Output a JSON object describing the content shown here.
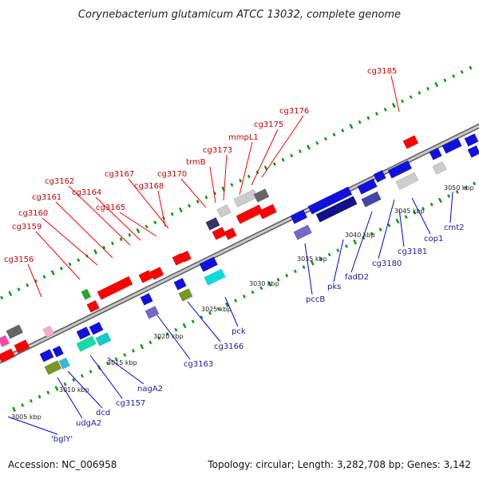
{
  "title": "Corynebacterium glutamicum ATCC 13032, complete genome",
  "accession": "Accession: NC_006958",
  "topology": "Topology: circular; Length: 3,282,708 bp; Genes: 3,142",
  "colors": {
    "forward": "#ff0000",
    "reverse": "#0000ee",
    "backbone": "#999999",
    "tick": "#119911",
    "forward_label": "#cc0000",
    "reverse_label": "#1a1aa8"
  },
  "scale_labels": [
    "3005 kbp",
    "3010 kbp",
    "3015 kbp",
    "3020 kbp",
    "3025 kbp",
    "3030 kbp",
    "3035 kbp",
    "3040 kbp",
    "3045 kbp",
    "3050 kbp"
  ],
  "forward_genes": [
    "cg3156",
    "cg3159",
    "cg3160",
    "cg3161",
    "cg3162",
    "cg3164",
    "cg3165",
    "cg3167",
    "cg3168",
    "cg3170",
    "trmB",
    "cg3173",
    "mmpL1",
    "cg3175",
    "cg3176",
    "cg3185"
  ],
  "reverse_genes": [
    "'bglY'",
    "udgA2",
    "dcd",
    "cg3157",
    "nagA2",
    "cg3163",
    "cg3166",
    "pck",
    "pccB",
    "pks",
    "fadD2",
    "cg3180",
    "cg3181",
    "cop1",
    "cmt2"
  ]
}
